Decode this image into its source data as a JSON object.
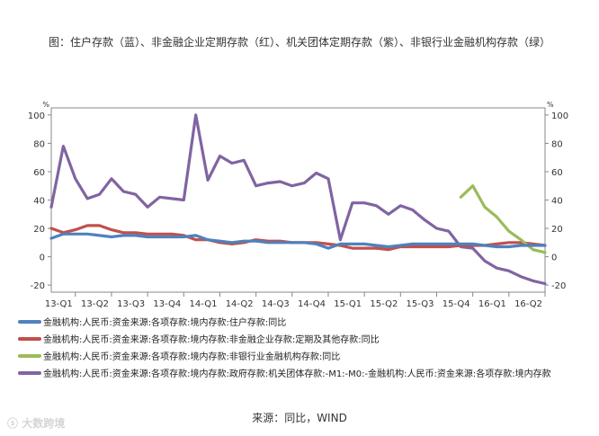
{
  "caption": "图：住户存款（蓝）、非金融企业定期存款（红）、机关团体定期存款（紫）、非银行业金融机构存款（绿）",
  "source": "来源：同比，WIND",
  "watermark": "大数跨境",
  "chart_data": {
    "type": "line",
    "y_unit_left": "%",
    "y_unit_right": "%",
    "ylim": [
      -25,
      105
    ],
    "yticks": [
      -20,
      0,
      20,
      40,
      60,
      80,
      100
    ],
    "grid": false,
    "legend_position": "bottom",
    "xlim": [
      "2013-01",
      "2016-06"
    ],
    "x_tick_labels": [
      "13-Q1",
      "13-Q2",
      "13-Q3",
      "13-Q4",
      "14-Q1",
      "14-Q2",
      "14-Q3",
      "14-Q4",
      "15-Q1",
      "15-Q2",
      "15-Q3",
      "15-Q4",
      "16-Q1",
      "16-Q2"
    ],
    "x_tick_positions": [
      "2013-03",
      "2013-06",
      "2013-09",
      "2013-12",
      "2014-03",
      "2014-06",
      "2014-09",
      "2014-12",
      "2015-03",
      "2015-06",
      "2015-09",
      "2015-12",
      "2016-03",
      "2016-06"
    ],
    "series": [
      {
        "name": "金融机构:人民币:资金来源:各项存款:境内存款:住户存款:同比",
        "color": "#4f81bd",
        "x": [
          "2013-01",
          "2013-02",
          "2013-03",
          "2013-04",
          "2013-05",
          "2013-06",
          "2013-07",
          "2013-08",
          "2013-09",
          "2013-10",
          "2013-11",
          "2013-12",
          "2014-01",
          "2014-02",
          "2014-03",
          "2014-04",
          "2014-05",
          "2014-06",
          "2014-07",
          "2014-08",
          "2014-09",
          "2014-10",
          "2014-11",
          "2014-12",
          "2015-01",
          "2015-02",
          "2015-03",
          "2015-04",
          "2015-05",
          "2015-06",
          "2015-07",
          "2015-08",
          "2015-09",
          "2015-10",
          "2015-11",
          "2015-12",
          "2016-01",
          "2016-02",
          "2016-03",
          "2016-04",
          "2016-05",
          "2016-06"
        ],
        "values": [
          13,
          16,
          16,
          16,
          15,
          14,
          15,
          15,
          14,
          14,
          14,
          14,
          15,
          12,
          11,
          10,
          11,
          11,
          10,
          10,
          10,
          10,
          9,
          6,
          9,
          9,
          9,
          8,
          7,
          8,
          9,
          9,
          9,
          9,
          9,
          9,
          8,
          7,
          7,
          8,
          8,
          8
        ]
      },
      {
        "name": "金融机构:人民币:资金来源:各项存款:境内存款:非金融企业存款:定期及其他存款:同比",
        "color": "#c0504d",
        "x": [
          "2013-01",
          "2013-02",
          "2013-03",
          "2013-04",
          "2013-05",
          "2013-06",
          "2013-07",
          "2013-08",
          "2013-09",
          "2013-10",
          "2013-11",
          "2013-12",
          "2014-01",
          "2014-02",
          "2014-03",
          "2014-04",
          "2014-05",
          "2014-06",
          "2014-07",
          "2014-08",
          "2014-09",
          "2014-10",
          "2014-11",
          "2014-12",
          "2015-01",
          "2015-02",
          "2015-03",
          "2015-04",
          "2015-05",
          "2015-06",
          "2015-07",
          "2015-08",
          "2015-09",
          "2015-10",
          "2015-11",
          "2015-12",
          "2016-01",
          "2016-02",
          "2016-03",
          "2016-04",
          "2016-05",
          "2016-06"
        ],
        "values": [
          20,
          17,
          19,
          22,
          22,
          19,
          17,
          17,
          16,
          16,
          16,
          15,
          12,
          12,
          10,
          9,
          10,
          12,
          11,
          11,
          10,
          10,
          10,
          9,
          8,
          6,
          6,
          6,
          5,
          7,
          7,
          7,
          7,
          7,
          8,
          8,
          8,
          9,
          10,
          10,
          9,
          8
        ]
      },
      {
        "name": "金融机构:人民币:资金来源:各项存款:境内存款:非银行业金融机构存款:同比",
        "color": "#9bbb59",
        "x": [
          "2015-11",
          "2015-12",
          "2016-01",
          "2016-02",
          "2016-03",
          "2016-04",
          "2016-05",
          "2016-06"
        ],
        "values": [
          42,
          50,
          35,
          28,
          18,
          12,
          5,
          3
        ]
      },
      {
        "name": "金融机构:人民币:资金来源:各项存款:境内存款:政府存款:机关团体存款:-M1:-M0:-金融机构:人民币:资金来源:各项存款:境内存款",
        "color": "#8064a2",
        "x": [
          "2013-01",
          "2013-02",
          "2013-03",
          "2013-04",
          "2013-05",
          "2013-06",
          "2013-07",
          "2013-08",
          "2013-09",
          "2013-10",
          "2013-11",
          "2013-12",
          "2014-01",
          "2014-02",
          "2014-03",
          "2014-04",
          "2014-05",
          "2014-06",
          "2014-07",
          "2014-08",
          "2014-09",
          "2014-10",
          "2014-11",
          "2014-12",
          "2015-01",
          "2015-02",
          "2015-03",
          "2015-04",
          "2015-05",
          "2015-06",
          "2015-07",
          "2015-08",
          "2015-09",
          "2015-10",
          "2015-11",
          "2015-12",
          "2016-01",
          "2016-02",
          "2016-03",
          "2016-04",
          "2016-05",
          "2016-06"
        ],
        "values": [
          35,
          78,
          55,
          41,
          44,
          55,
          46,
          44,
          35,
          42,
          41,
          40,
          100,
          54,
          71,
          66,
          68,
          50,
          52,
          53,
          50,
          52,
          59,
          55,
          12,
          38,
          38,
          36,
          30,
          36,
          33,
          26,
          20,
          18,
          7,
          6,
          -3,
          -8,
          -10,
          -14,
          -17,
          -19
        ]
      }
    ]
  }
}
